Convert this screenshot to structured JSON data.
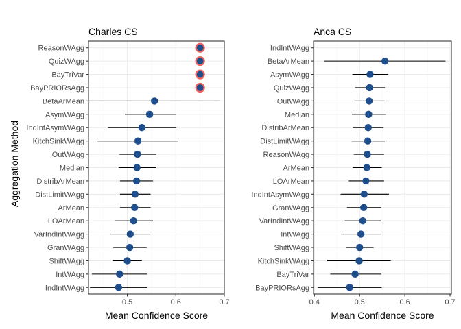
{
  "chart_data": [
    {
      "type": "scatter",
      "subtype": "point-range",
      "title": "Charles CS",
      "xlabel": "Mean Confidence Score",
      "ylabel": "Aggregation Method",
      "xlim": [
        0.42,
        0.7
      ],
      "xticks": [
        "0.5",
        "0.6",
        "0.7"
      ],
      "xtick_values": [
        0.5,
        0.6,
        0.7
      ],
      "grid": true,
      "point_color": "#1f4e8c",
      "highlight_color": "#f0605d",
      "categories": [
        "ReasonWAgg",
        "QuizWAgg",
        "BayTriVar",
        "BayPRIORsAgg",
        "BetaArMean",
        "AsymWAgg",
        "IndIntAsymWAgg",
        "KitchSinkWAgg",
        "OutWAgg",
        "Median",
        "DistribArMean",
        "DistLimitWAgg",
        "ArMean",
        "LOArMean",
        "VarIndIntWAgg",
        "GranWAgg",
        "ShiftWAgg",
        "IntWAgg",
        "IndIntWAgg"
      ],
      "values": [
        0.65,
        0.65,
        0.65,
        0.65,
        0.556,
        0.546,
        0.53,
        0.522,
        0.521,
        0.52,
        0.519,
        0.516,
        0.515,
        0.513,
        0.506,
        0.505,
        0.5,
        0.484,
        0.482
      ],
      "lower": [
        null,
        null,
        null,
        null,
        0.421,
        0.495,
        0.46,
        0.437,
        0.484,
        0.482,
        0.485,
        0.485,
        0.485,
        0.475,
        0.465,
        0.471,
        0.47,
        0.427,
        0.423
      ],
      "upper": [
        null,
        null,
        null,
        null,
        0.69,
        0.6,
        0.601,
        0.605,
        0.56,
        0.56,
        0.553,
        0.548,
        0.548,
        0.553,
        0.548,
        0.54,
        0.53,
        0.541,
        0.541
      ],
      "highlighted": [
        true,
        true,
        true,
        true,
        false,
        false,
        false,
        false,
        false,
        false,
        false,
        false,
        false,
        false,
        false,
        false,
        false,
        false,
        false
      ]
    },
    {
      "type": "scatter",
      "subtype": "point-range",
      "title": "Anca CS",
      "xlabel": "Mean Confidence Score",
      "ylabel": "",
      "xlim": [
        0.398,
        0.703
      ],
      "xticks": [
        "0.4",
        "0.5",
        "0.6",
        "0.7"
      ],
      "xtick_values": [
        0.4,
        0.5,
        0.6,
        0.7
      ],
      "grid": true,
      "point_color": "#1f4e8c",
      "categories": [
        "IndIntWAgg",
        "BetaArMean",
        "AsymWAgg",
        "QuizWAgg",
        "OutWAgg",
        "Median",
        "DistribArMean",
        "DistLimitWAgg",
        "ReasonWAgg",
        "ArMean",
        "LOArMean",
        "IndIntAsymWAgg",
        "GranWAgg",
        "VarIndIntWAgg",
        "IntWAgg",
        "ShiftWAgg",
        "KitchSinkWAgg",
        "BayTriVar",
        "BayPRIORsAgg"
      ],
      "values": [
        null,
        0.556,
        0.523,
        0.522,
        0.521,
        0.52,
        0.519,
        0.518,
        0.517,
        0.516,
        0.514,
        0.51,
        0.509,
        0.507,
        0.503,
        0.5,
        0.499,
        0.49,
        0.478
      ],
      "lower": [
        null,
        0.421,
        0.484,
        0.49,
        0.488,
        0.483,
        0.486,
        0.482,
        0.487,
        0.485,
        0.476,
        0.458,
        0.472,
        0.467,
        0.459,
        0.47,
        0.428,
        0.435,
        0.408
      ],
      "upper": [
        null,
        0.69,
        0.563,
        0.556,
        0.555,
        0.559,
        0.553,
        0.556,
        0.554,
        0.549,
        0.554,
        0.565,
        0.548,
        0.547,
        0.547,
        0.531,
        0.569,
        0.548,
        0.549
      ]
    }
  ]
}
